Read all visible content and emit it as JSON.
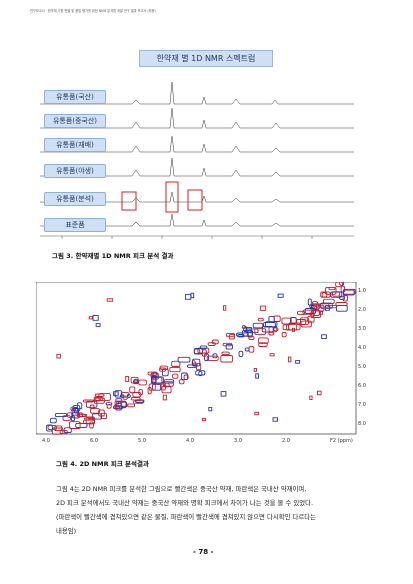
{
  "header": {
    "text": "연구보고서 · 한약재 기원 판별 및 품질 평가를 위한 NMR 분석법 개발 연구 결과 보고서 (최종)"
  },
  "fig1": {
    "title": "한약재 별 1D NMR 스펙트럼",
    "labels": [
      "유통품(국산)",
      "유통품(중국산)",
      "유통품(재배)",
      "유통품(야생)",
      "유통품(분석)",
      "표준품"
    ],
    "caption": "그림 3. 한약재별 1D NMR 피크 분석 결과"
  },
  "fig2": {
    "caption": "그림 4. 2D NMR 피크 분석결과",
    "x_ticks": [
      "4.0",
      "6.0",
      "5.0",
      "4.0",
      "3.0",
      "2.0",
      "F2 (ppm)"
    ],
    "y_ticks": [
      "1.0",
      "2.0",
      "3.0",
      "4.0",
      "5.0",
      "6.0",
      "7.0",
      "8.0"
    ]
  },
  "body": {
    "lines": [
      "그림 4는 2D NMR 피크를 분석한 그림으로 빨간색은 중국산 약재, 파란색은 국내산 약재이며,",
      "2D 피크 분석에서도 국내산 약재는 중국산 약재와 명확 피크에서 차이가 나는 것을 볼 수 있었다.",
      "(파란색이 빨간색에 겹쳐있으면 같은 물질, 파란색이 빨간색에 겹쳐있지 않으면 다시확인 다르다는",
      "내용임)"
    ]
  },
  "page_number": "- 78 -"
}
